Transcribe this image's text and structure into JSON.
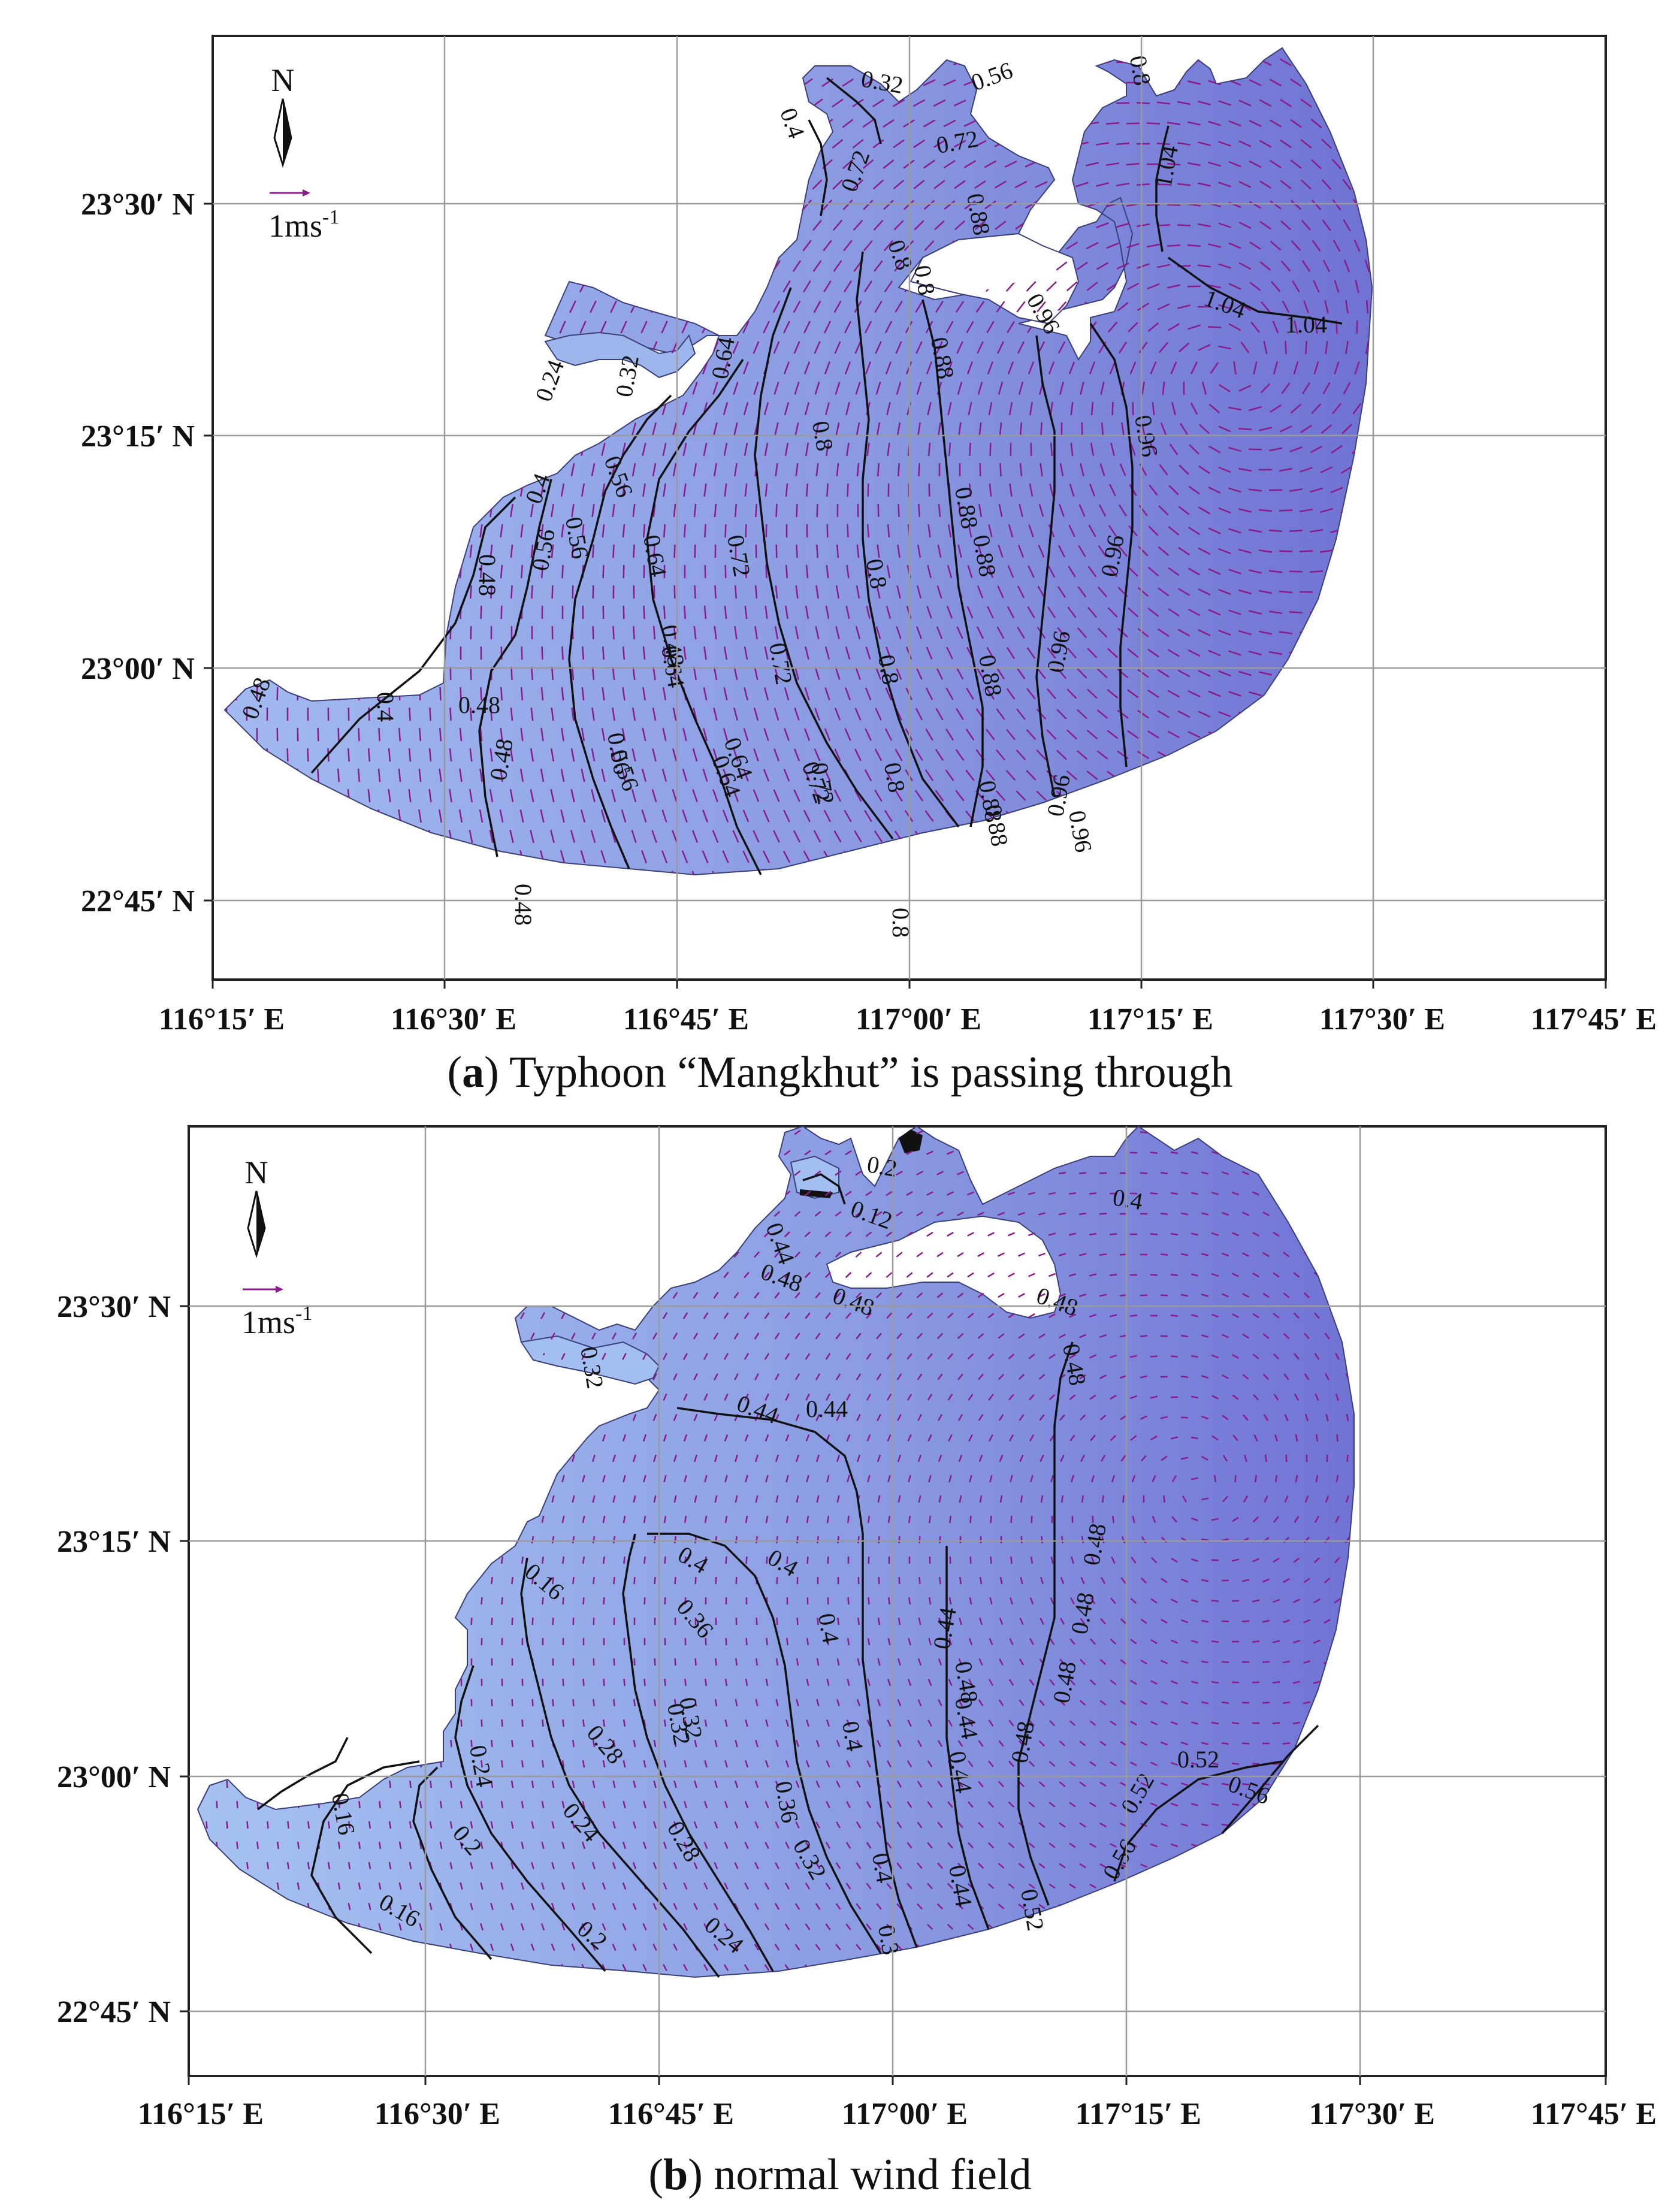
{
  "panels": [
    {
      "id": "a",
      "caption_letter": "a",
      "caption_text": "Typhoon “Mangkhut” is passing through",
      "x_ticks": [
        "116°15′ E",
        "116°30′ E",
        "116°45′ E",
        "117°00′ E",
        "117°15′ E",
        "117°30′ E",
        "117°45′ E"
      ],
      "y_ticks": [
        "23°30′ N",
        "23°15′ N",
        "23°00′ N",
        "22°45′ N"
      ],
      "north_label": "N",
      "scale_label": "1ms",
      "scale_exp": "-1",
      "contour_labels": [
        "0.32",
        "0.56",
        "0.8",
        "0.72",
        "0.4",
        "0.72",
        "0.88",
        "1.04",
        "0.8",
        "0.8",
        "0.96",
        "1.04",
        "1.04",
        "0.24",
        "0.32",
        "0.64",
        "0.88",
        "0.4",
        "0.56",
        "0.8",
        "0.96",
        "0.56",
        "0.88",
        "0.88",
        "0.48",
        "0.56",
        "0.64",
        "0.72",
        "0.8",
        "0.96",
        "0.48",
        "0.64",
        "0.72",
        "0.8",
        "0.88",
        "0.96",
        "0.4",
        "0.48",
        "0.48",
        "0.56",
        "0.64",
        "0.72",
        "0.8",
        "0.88",
        "0.96",
        "0.56",
        "0.64",
        "0.72",
        "0.88",
        "0.96",
        "0.48",
        "0.8",
        "0.48"
      ],
      "colors": {
        "shallow": "#9db6ec",
        "deep": "#7274d4",
        "arrow": "#8b1a8b",
        "contour": "#111111"
      }
    },
    {
      "id": "b",
      "caption_letter": "b",
      "caption_text": "normal wind field",
      "x_ticks": [
        "116°15′ E",
        "116°30′ E",
        "116°45′ E",
        "117°00′ E",
        "117°15′ E",
        "117°30′ E",
        "117°45′ E"
      ],
      "y_ticks": [
        "23°30′ N",
        "23°15′ N",
        "23°00′ N",
        "22°45′ N"
      ],
      "north_label": "N",
      "scale_label": "1ms",
      "scale_exp": "-1",
      "contour_labels": [
        "0.2",
        "0.4",
        "0.12",
        "0.44",
        "0.48",
        "0.48",
        "0.48",
        "0.48",
        "0.32",
        "0.44",
        "0.44",
        "0.48",
        "0.4",
        "0.4",
        "0.16",
        "0.36",
        "0.4",
        "0.44",
        "0.48",
        "0.48",
        "0.32",
        "0.44",
        "0.48",
        "0.24",
        "0.28",
        "0.32",
        "0.4",
        "0.52",
        "0.52",
        "0.56",
        "0.44",
        "0.36",
        "0.48",
        "0.16",
        "0.2",
        "0.24",
        "0.28",
        "0.32",
        "0.4",
        "0.44",
        "0.52",
        "0.56",
        "0.16",
        "0.2",
        "0.24",
        "0.3"
      ],
      "colors": {
        "shallow": "#a3bef0",
        "deep": "#7477d6",
        "arrow": "#8b1a8b",
        "contour": "#111111"
      }
    }
  ]
}
